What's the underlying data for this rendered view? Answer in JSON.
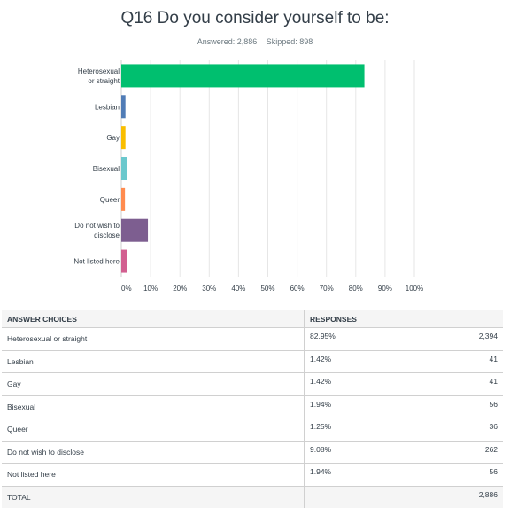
{
  "question": {
    "title": "Q16 Do you consider yourself to be:",
    "answered_label": "Answered: 2,886",
    "skipped_label": "Skipped: 898"
  },
  "chart_data": {
    "type": "bar",
    "orientation": "horizontal",
    "categories": [
      "Heterosexual or straight",
      "Lesbian",
      "Gay",
      "Bisexual",
      "Queer",
      "Do not wish to disclose",
      "Not listed here"
    ],
    "category_label_lines": [
      [
        "Heterosexual",
        "or straight"
      ],
      [
        "Lesbian"
      ],
      [
        "Gay"
      ],
      [
        "Bisexual"
      ],
      [
        "Queer"
      ],
      [
        "Do not wish to",
        "disclose"
      ],
      [
        "Not listed here"
      ]
    ],
    "values": [
      82.95,
      1.42,
      1.42,
      1.94,
      1.25,
      9.08,
      1.94
    ],
    "colors": [
      "#00bf6f",
      "#507cb6",
      "#f9be00",
      "#6bc8cd",
      "#ff8b4f",
      "#7d5e90",
      "#d25f90"
    ],
    "xlim": [
      0,
      100
    ],
    "x_ticks": [
      "0%",
      "10%",
      "20%",
      "30%",
      "40%",
      "50%",
      "60%",
      "70%",
      "80%",
      "90%",
      "100%"
    ],
    "grid": true,
    "xlabel": "",
    "ylabel": ""
  },
  "table": {
    "headers": {
      "choices": "ANSWER CHOICES",
      "responses": "RESPONSES"
    },
    "rows": [
      {
        "choice": "Heterosexual or straight",
        "percent": "82.95%",
        "count": "2,394"
      },
      {
        "choice": "Lesbian",
        "percent": "1.42%",
        "count": "41"
      },
      {
        "choice": "Gay",
        "percent": "1.42%",
        "count": "41"
      },
      {
        "choice": "Bisexual",
        "percent": "1.94%",
        "count": "56"
      },
      {
        "choice": "Queer",
        "percent": "1.25%",
        "count": "36"
      },
      {
        "choice": "Do not wish to disclose",
        "percent": "9.08%",
        "count": "262"
      },
      {
        "choice": "Not listed here",
        "percent": "1.94%",
        "count": "56"
      }
    ],
    "total": {
      "label": "TOTAL",
      "count": "2,886"
    }
  }
}
